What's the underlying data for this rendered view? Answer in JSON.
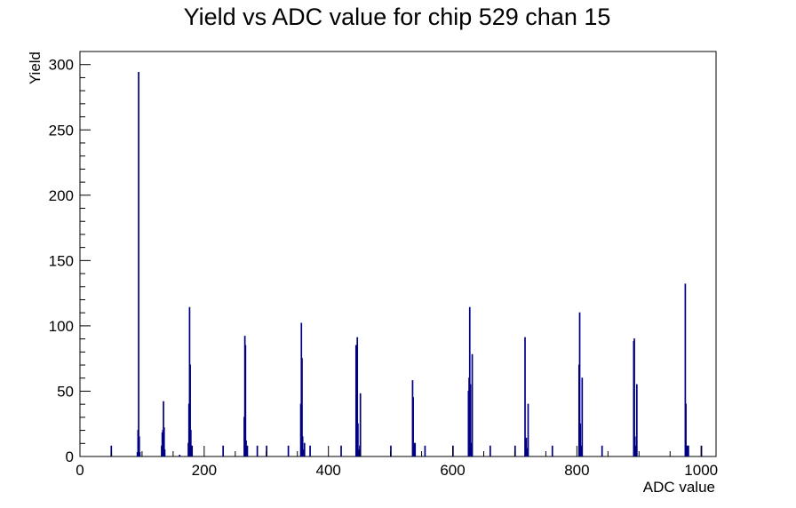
{
  "chart_data": {
    "type": "histogram",
    "title": "Yield vs ADC value for chip 529 chan 15",
    "xlabel": "ADC value",
    "ylabel": "Yield",
    "xlim": [
      0,
      1024
    ],
    "ylim": [
      0,
      310
    ],
    "x_ticks": [
      0,
      200,
      400,
      600,
      800,
      1000
    ],
    "x_tick_labels": [
      "0",
      "200",
      "400",
      "600",
      "800",
      "1000"
    ],
    "y_ticks": [
      0,
      50,
      100,
      150,
      200,
      250,
      300
    ],
    "y_tick_labels": [
      "0",
      "50",
      "100",
      "150",
      "200",
      "250",
      "300"
    ],
    "line_color": "#000080",
    "bin_width": 1,
    "series": [
      {
        "x": [
          92,
          93,
          94,
          95,
          96,
          131,
          132,
          133,
          134,
          135,
          136,
          174,
          175,
          176,
          177,
          178,
          179,
          180,
          264,
          265,
          266,
          267,
          268,
          269,
          355,
          356,
          357,
          358,
          359,
          360,
          361,
          444,
          445,
          446,
          447,
          448,
          449,
          450,
          451,
          535,
          536,
          537,
          538,
          539,
          625,
          626,
          627,
          628,
          629,
          630,
          631,
          716,
          717,
          718,
          719,
          720,
          721,
          803,
          804,
          805,
          806,
          807,
          808,
          891,
          892,
          893,
          894,
          895,
          896,
          974,
          975,
          976,
          977,
          978,
          979,
          50,
          160,
          230,
          285,
          300,
          335,
          370,
          420,
          500,
          555,
          600,
          660,
          700,
          760,
          840,
          1000
        ],
        "y": [
          3,
          20,
          294,
          15,
          3,
          8,
          18,
          20,
          42,
          22,
          5,
          10,
          40,
          114,
          70,
          20,
          3,
          8,
          30,
          92,
          85,
          12,
          3,
          8,
          40,
          102,
          75,
          15,
          5,
          2,
          10,
          85,
          35,
          91,
          25,
          5,
          2,
          8,
          48,
          58,
          45,
          10,
          3,
          10,
          50,
          60,
          114,
          55,
          5,
          10,
          78,
          91,
          12,
          14,
          3,
          6,
          40,
          70,
          110,
          25,
          5,
          8,
          60,
          88,
          90,
          15,
          3,
          8,
          55,
          132,
          40,
          8,
          2,
          8,
          8,
          8,
          1,
          8,
          8,
          8,
          8,
          8,
          8,
          8,
          8,
          8,
          8,
          8,
          8,
          8,
          8
        ]
      }
    ]
  }
}
